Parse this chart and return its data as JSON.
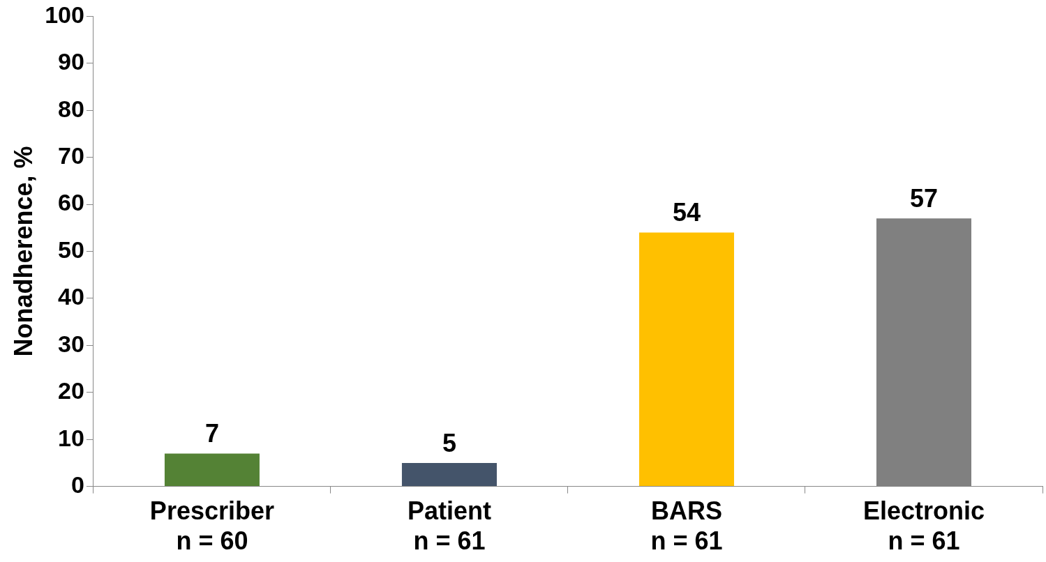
{
  "chart_data": {
    "type": "bar",
    "ylabel": "Nonadherence, %",
    "categories": [
      "Prescriber\nn = 60",
      "Patient\nn = 61",
      "BARS\nn = 61",
      "Electronic\nn = 61"
    ],
    "values": [
      7,
      5,
      54,
      57
    ],
    "colors": [
      "#548235",
      "#44546a",
      "#ffc000",
      "#808080"
    ],
    "ylim": [
      0,
      100
    ],
    "yticks": [
      0,
      10,
      20,
      30,
      40,
      50,
      60,
      70,
      80,
      90,
      100
    ],
    "data_labels": true,
    "grid": false,
    "legend": false
  }
}
